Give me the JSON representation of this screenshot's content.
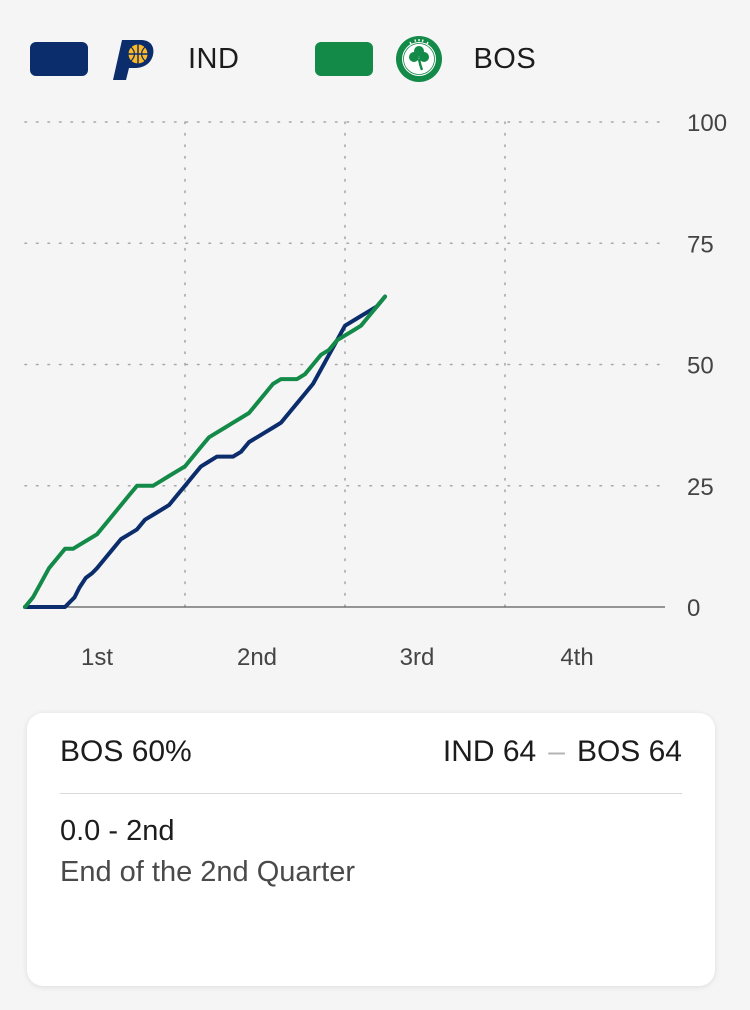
{
  "legend": [
    {
      "abbr": "IND",
      "color": "#0c2d6b",
      "logo": "pacers-logo-icon"
    },
    {
      "abbr": "BOS",
      "color": "#138a48",
      "logo": "celtics-logo-icon"
    }
  ],
  "chart_data": {
    "type": "line",
    "x_unit": "quarter",
    "xlim": [
      0,
      4
    ],
    "ylim": [
      0,
      100
    ],
    "y_ticks": [
      0,
      25,
      50,
      75,
      100
    ],
    "y_tick_labels": [
      "0",
      "25",
      "50",
      "75",
      "100"
    ],
    "quarter_labels": [
      "1st",
      "2nd",
      "3rd",
      "4th"
    ],
    "grid": true,
    "grid_style": "dotted",
    "y_axis_side": "right",
    "series": [
      {
        "name": "IND",
        "color": "#0c2d6b",
        "points": [
          [
            0,
            0
          ],
          [
            0.25,
            0
          ],
          [
            0.28,
            1
          ],
          [
            0.31,
            2
          ],
          [
            0.34,
            4
          ],
          [
            0.38,
            6
          ],
          [
            0.42,
            7
          ],
          [
            0.45,
            8
          ],
          [
            0.5,
            10
          ],
          [
            0.55,
            12
          ],
          [
            0.6,
            14
          ],
          [
            0.65,
            15
          ],
          [
            0.7,
            16
          ],
          [
            0.75,
            18
          ],
          [
            0.8,
            19
          ],
          [
            0.85,
            20
          ],
          [
            0.9,
            21
          ],
          [
            0.95,
            23
          ],
          [
            1.0,
            25
          ],
          [
            1.05,
            27
          ],
          [
            1.1,
            29
          ],
          [
            1.15,
            30
          ],
          [
            1.2,
            31
          ],
          [
            1.3,
            31
          ],
          [
            1.35,
            32
          ],
          [
            1.4,
            34
          ],
          [
            1.45,
            35
          ],
          [
            1.5,
            36
          ],
          [
            1.55,
            37
          ],
          [
            1.6,
            38
          ],
          [
            1.65,
            40
          ],
          [
            1.7,
            42
          ],
          [
            1.75,
            44
          ],
          [
            1.8,
            46
          ],
          [
            1.85,
            49
          ],
          [
            1.9,
            52
          ],
          [
            1.95,
            55
          ],
          [
            2.0,
            58
          ],
          [
            2.05,
            59
          ],
          [
            2.1,
            60
          ],
          [
            2.15,
            61
          ],
          [
            2.2,
            62
          ],
          [
            2.25,
            64
          ]
        ]
      },
      {
        "name": "BOS",
        "color": "#138a48",
        "points": [
          [
            0,
            0
          ],
          [
            0.05,
            2
          ],
          [
            0.1,
            5
          ],
          [
            0.15,
            8
          ],
          [
            0.2,
            10
          ],
          [
            0.25,
            12
          ],
          [
            0.3,
            12
          ],
          [
            0.35,
            13
          ],
          [
            0.4,
            14
          ],
          [
            0.45,
            15
          ],
          [
            0.5,
            17
          ],
          [
            0.55,
            19
          ],
          [
            0.6,
            21
          ],
          [
            0.65,
            23
          ],
          [
            0.7,
            25
          ],
          [
            0.8,
            25
          ],
          [
            0.85,
            26
          ],
          [
            0.9,
            27
          ],
          [
            0.95,
            28
          ],
          [
            1.0,
            29
          ],
          [
            1.05,
            31
          ],
          [
            1.1,
            33
          ],
          [
            1.15,
            35
          ],
          [
            1.2,
            36
          ],
          [
            1.25,
            37
          ],
          [
            1.3,
            38
          ],
          [
            1.35,
            39
          ],
          [
            1.4,
            40
          ],
          [
            1.45,
            42
          ],
          [
            1.5,
            44
          ],
          [
            1.55,
            46
          ],
          [
            1.6,
            47
          ],
          [
            1.7,
            47
          ],
          [
            1.75,
            48
          ],
          [
            1.8,
            50
          ],
          [
            1.85,
            52
          ],
          [
            1.9,
            53
          ],
          [
            1.95,
            55
          ],
          [
            2.0,
            56
          ],
          [
            2.05,
            57
          ],
          [
            2.1,
            58
          ],
          [
            2.15,
            60
          ],
          [
            2.2,
            62
          ],
          [
            2.25,
            64
          ]
        ]
      }
    ]
  },
  "card": {
    "win_prob": "BOS 60%",
    "score_left": "IND 64",
    "score_sep": "–",
    "score_right": "BOS 64",
    "clock": "0.0 - 2nd",
    "description": "End of the 2nd Quarter"
  }
}
